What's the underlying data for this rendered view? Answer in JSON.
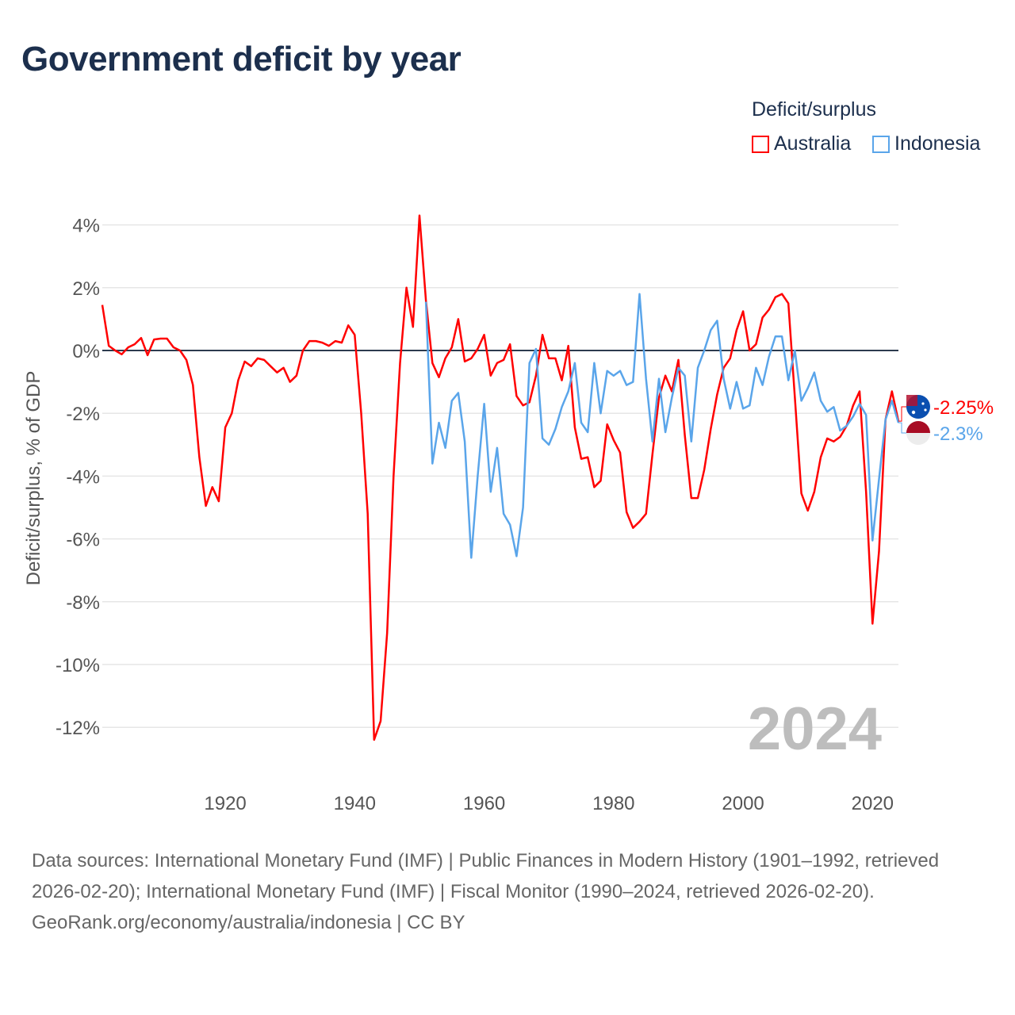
{
  "title": "Government deficit by year",
  "legend": {
    "title": "Deficit/surplus",
    "items": [
      {
        "name": "Australia",
        "color": "#ff0000"
      },
      {
        "name": "Indonesia",
        "color": "#5aa5ea"
      }
    ]
  },
  "footer": {
    "sources": "Data sources: International Monetary Fund (IMF) | Public Finances in Modern History (1901–1992, retrieved 2026-02-20); International Monetary Fund (IMF) | Fiscal Monitor (1990–2024, retrieved 2026-02-20).",
    "credit": "GeoRank.org/economy/australia/indonesia | CC BY"
  },
  "chart_data": {
    "type": "line",
    "title": "Government deficit by year",
    "ylabel": "Deficit/surplus, % of GDP",
    "xlabel": "",
    "xlim": [
      1901,
      2024
    ],
    "ylim": [
      -12.5,
      4.5
    ],
    "x_ticks": [
      "1920",
      "1940",
      "1960",
      "1980",
      "2000",
      "2020"
    ],
    "y_ticks": [
      "4%",
      "2%",
      "0%",
      "-2%",
      "-4%",
      "-6%",
      "-8%",
      "-10%",
      "-12%"
    ],
    "watermark_year": "2024",
    "series": [
      {
        "name": "Australia",
        "color": "#ff0000",
        "start": 1901,
        "end_label": "-2.25%",
        "values": [
          1.45,
          0.15,
          0,
          -0.12,
          0.1,
          0.2,
          0.4,
          -0.15,
          0.35,
          0.38,
          0.38,
          0.1,
          0,
          -0.3,
          -1.1,
          -3.4,
          -4.95,
          -4.35,
          -4.8,
          -2.45,
          -2.0,
          -0.95,
          -0.35,
          -0.5,
          -0.25,
          -0.3,
          -0.5,
          -0.7,
          -0.55,
          -1.0,
          -0.8,
          0,
          0.3,
          0.3,
          0.25,
          0.15,
          0.3,
          0.25,
          0.8,
          0.5,
          -2.0,
          -5.2,
          -12.4,
          -11.8,
          -9.0,
          -4.0,
          -0.4,
          2.0,
          0.75,
          4.3,
          1.6,
          -0.4,
          -0.85,
          -0.25,
          0.1,
          1.0,
          -0.35,
          -0.25,
          0.05,
          0.5,
          -0.8,
          -0.4,
          -0.3,
          0.2,
          -1.45,
          -1.75,
          -1.65,
          -0.8,
          0.5,
          -0.25,
          -0.25,
          -0.95,
          0.15,
          -2.45,
          -3.45,
          -3.4,
          -4.35,
          -4.15,
          -2.35,
          -2.85,
          -3.25,
          -5.15,
          -5.65,
          -5.45,
          -5.2,
          -3.3,
          -1.5,
          -0.8,
          -1.3,
          -0.3,
          -2.7,
          -4.7,
          -4.7,
          -3.8,
          -2.5,
          -1.4,
          -0.55,
          -0.25,
          0.65,
          1.25,
          0,
          0.2,
          1.05,
          1.3,
          1.7,
          1.8,
          1.5,
          -1.5,
          -4.55,
          -5.1,
          -4.5,
          -3.4,
          -2.8,
          -2.9,
          -2.75,
          -2.4,
          -1.75,
          -1.3,
          -4.5,
          -8.7,
          -6.4,
          -2.2,
          -1.3,
          -2.25
        ]
      },
      {
        "name": "Indonesia",
        "color": "#5aa5ea",
        "start": 1951,
        "end_label": "-2.3%",
        "values": [
          1.55,
          -3.6,
          -2.3,
          -3.1,
          -1.6,
          -1.35,
          -2.9,
          -6.6,
          -4.0,
          -1.7,
          -4.5,
          -3.1,
          -5.2,
          -5.55,
          -6.55,
          -5.0,
          -0.4,
          0.05,
          -2.8,
          -3.0,
          -2.5,
          -1.8,
          -1.3,
          -0.4,
          -2.3,
          -2.6,
          -0.4,
          -2.0,
          -0.65,
          -0.8,
          -0.65,
          -1.1,
          -1.0,
          1.8,
          -0.9,
          -2.9,
          -0.9,
          -2.6,
          -1.5,
          -0.55,
          -0.8,
          -2.9,
          -0.55,
          0,
          0.65,
          0.95,
          -0.9,
          -1.85,
          -1.0,
          -1.85,
          -1.75,
          -0.55,
          -1.1,
          -0.2,
          0.45,
          0.45,
          -0.95,
          0,
          -1.6,
          -1.2,
          -0.7,
          -1.6,
          -1.95,
          -1.8,
          -2.55,
          -2.4,
          -2.1,
          -1.7,
          -2.05,
          -6.05,
          -4.1,
          -2.2,
          -1.6,
          -2.3
        ]
      }
    ]
  }
}
